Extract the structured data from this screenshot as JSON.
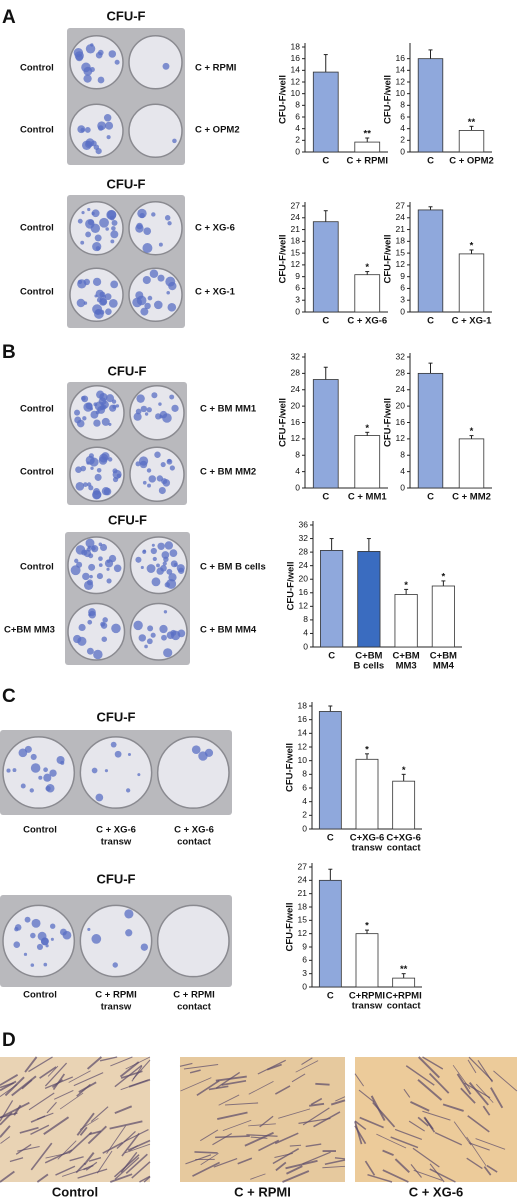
{
  "figure": {
    "panel_labels": [
      "A",
      "B",
      "C",
      "D"
    ],
    "plates": [
      {
        "title": "CFU-F",
        "labels": [
          "Control",
          "C + RPMI",
          "Control",
          "C + OPM2"
        ]
      },
      {
        "title": "CFU-F",
        "labels": [
          "Control",
          "C + XG-6",
          "Control",
          "C + XG-1"
        ]
      },
      {
        "title": "CFU-F",
        "labels": [
          "Control",
          "C + BM MM1",
          "Control",
          "C + BM MM2"
        ]
      },
      {
        "title": "CFU-F",
        "labels": [
          "Control",
          "C + BM B cells",
          "C+BM MM3",
          "C + BM MM4"
        ]
      },
      {
        "title": "CFU-F",
        "labels": [
          [
            "Control"
          ],
          [
            "C + XG-6",
            "transw"
          ],
          [
            "C + XG-6",
            "contact"
          ]
        ]
      },
      {
        "title": "CFU-F",
        "labels": [
          [
            "Control"
          ],
          [
            "C + RPMI",
            "transw"
          ],
          [
            "C + RPMI",
            "contact"
          ]
        ]
      }
    ],
    "micrographs": [
      "Control",
      "C + RPMI",
      "C + XG-6"
    ]
  },
  "chart_data": [
    {
      "type": "bar",
      "y_label": "CFU-F/well",
      "categories": [
        [
          "C"
        ],
        [
          "C + RPMI"
        ]
      ],
      "values": [
        13.7,
        1.7
      ],
      "errors": [
        3,
        0.7
      ],
      "colors": [
        "#8fa8dc",
        "#ffffff"
      ],
      "annotations": [
        {
          "index": 1,
          "label": "**"
        }
      ],
      "ylim": [
        0,
        18
      ],
      "yticks": [
        0,
        2,
        4,
        6,
        8,
        10,
        12,
        14,
        16,
        18
      ]
    },
    {
      "type": "bar",
      "y_label": "CFU-F/well",
      "categories": [
        [
          "C"
        ],
        [
          "C + OPM2"
        ]
      ],
      "values": [
        16,
        3.7
      ],
      "errors": [
        1.5,
        0.7
      ],
      "colors": [
        "#8fa8dc",
        "#ffffff"
      ],
      "annotations": [
        {
          "index": 1,
          "label": "**"
        }
      ],
      "ylim": [
        0,
        18
      ],
      "yticks": [
        0,
        2,
        4,
        6,
        8,
        10,
        12,
        14,
        16
      ]
    },
    {
      "type": "bar",
      "y_label": "CFU-F/well",
      "categories": [
        [
          "C"
        ],
        [
          "C + XG-6"
        ]
      ],
      "values": [
        23,
        9.5
      ],
      "errors": [
        2.8,
        0.8
      ],
      "colors": [
        "#8fa8dc",
        "#ffffff"
      ],
      "annotations": [
        {
          "index": 1,
          "label": "*"
        }
      ],
      "ylim": [
        0,
        27
      ],
      "yticks": [
        0,
        3,
        6,
        9,
        12,
        15,
        18,
        21,
        24,
        27
      ]
    },
    {
      "type": "bar",
      "y_label": "CFU-F/well",
      "categories": [
        [
          "C"
        ],
        [
          "C + XG-1"
        ]
      ],
      "values": [
        26,
        14.8
      ],
      "errors": [
        0.8,
        1
      ],
      "colors": [
        "#8fa8dc",
        "#ffffff"
      ],
      "annotations": [
        {
          "index": 1,
          "label": "*"
        }
      ],
      "ylim": [
        0,
        27
      ],
      "yticks": [
        0,
        3,
        6,
        9,
        12,
        15,
        18,
        21,
        24,
        27
      ]
    },
    {
      "type": "bar",
      "y_label": "CFU-F/well",
      "categories": [
        [
          "C"
        ],
        [
          "C + MM1"
        ]
      ],
      "values": [
        26.5,
        12.8
      ],
      "errors": [
        3,
        0.8
      ],
      "colors": [
        "#8fa8dc",
        "#ffffff"
      ],
      "annotations": [
        {
          "index": 1,
          "label": "*"
        }
      ],
      "ylim": [
        0,
        32
      ],
      "yticks": [
        0,
        4,
        8,
        12,
        16,
        20,
        24,
        28,
        32
      ]
    },
    {
      "type": "bar",
      "y_label": "CFU-F/well",
      "categories": [
        [
          "C"
        ],
        [
          "C + MM2"
        ]
      ],
      "values": [
        28,
        12
      ],
      "errors": [
        2.5,
        0.8
      ],
      "colors": [
        "#8fa8dc",
        "#ffffff"
      ],
      "annotations": [
        {
          "index": 1,
          "label": "*"
        }
      ],
      "ylim": [
        0,
        32
      ],
      "yticks": [
        0,
        4,
        8,
        12,
        16,
        20,
        24,
        28,
        32
      ]
    },
    {
      "type": "bar",
      "y_label": "CFU-F/well",
      "categories": [
        [
          "C"
        ],
        [
          "C+BM",
          "B cells"
        ],
        [
          "C+BM",
          "MM3"
        ],
        [
          "C+BM",
          "MM4"
        ]
      ],
      "values": [
        28.5,
        28.2,
        15.5,
        18
      ],
      "errors": [
        3.5,
        3.8,
        1.5,
        1.5
      ],
      "colors": [
        "#8fa8dc",
        "#3a6cc0",
        "#ffffff",
        "#ffffff"
      ],
      "annotations": [
        {
          "index": 2,
          "label": "*"
        },
        {
          "index": 3,
          "label": "*"
        }
      ],
      "ylim": [
        0,
        36
      ],
      "yticks": [
        0,
        4,
        8,
        12,
        16,
        20,
        24,
        28,
        32,
        36
      ]
    },
    {
      "type": "bar",
      "y_label": "CFU-F/well",
      "categories": [
        [
          "C"
        ],
        [
          "C+XG-6",
          "transw"
        ],
        [
          "C+XG-6",
          "contact"
        ]
      ],
      "values": [
        17.2,
        10.2,
        7
      ],
      "errors": [
        0.8,
        0.8,
        1
      ],
      "colors": [
        "#8fa8dc",
        "#ffffff",
        "#ffffff"
      ],
      "annotations": [
        {
          "index": 1,
          "label": "*"
        },
        {
          "index": 2,
          "label": "*"
        }
      ],
      "ylim": [
        0,
        18
      ],
      "yticks": [
        0,
        2,
        4,
        6,
        8,
        10,
        12,
        14,
        16,
        18
      ]
    },
    {
      "type": "bar",
      "y_label": "CFU-F/well",
      "categories": [
        [
          "C"
        ],
        [
          "C+RPMI",
          "transw"
        ],
        [
          "C+RPMI",
          "contact"
        ]
      ],
      "values": [
        24,
        12,
        2
      ],
      "errors": [
        2.5,
        0.8,
        1
      ],
      "colors": [
        "#8fa8dc",
        "#ffffff",
        "#ffffff"
      ],
      "annotations": [
        {
          "index": 1,
          "label": "*"
        },
        {
          "index": 2,
          "label": "**"
        }
      ],
      "ylim": [
        0,
        27
      ],
      "yticks": [
        0,
        3,
        6,
        9,
        12,
        15,
        18,
        21,
        24,
        27
      ]
    }
  ]
}
